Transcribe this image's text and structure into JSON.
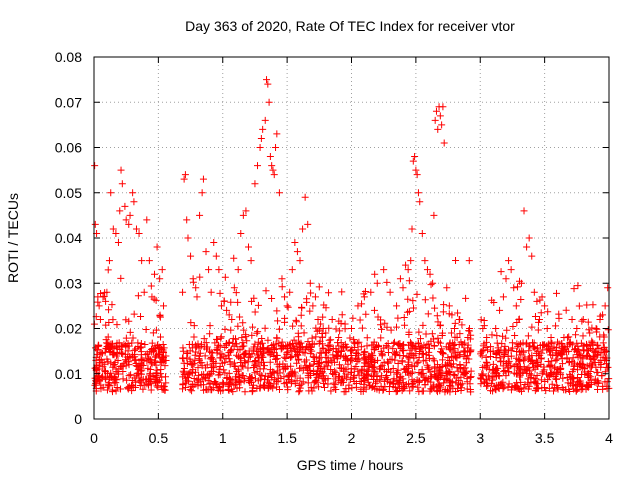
{
  "chart_data": {
    "type": "scatter",
    "title": "Day 363 of 2020, Rate Of TEC Index for receiver vtor",
    "xlabel": "GPS time / hours",
    "ylabel": "ROTI / TECUs",
    "xlim": [
      0,
      4
    ],
    "ylim": [
      0,
      0.08
    ],
    "xticks": [
      "0",
      "0.5",
      "1",
      "1.5",
      "2",
      "2.5",
      "3",
      "3.5",
      "4"
    ],
    "xtick_values": [
      0,
      0.5,
      1,
      1.5,
      2,
      2.5,
      3,
      3.5,
      4
    ],
    "yticks": [
      "0",
      "0.01",
      "0.02",
      "0.03",
      "0.04",
      "0.05",
      "0.06",
      "0.07",
      "0.08"
    ],
    "ytick_values": [
      0,
      0.01,
      0.02,
      0.03,
      0.04,
      0.05,
      0.06,
      0.07,
      0.08
    ],
    "grid": true,
    "marker": "+",
    "color": "#ff0000",
    "gaps_hours": [
      [
        0.56,
        0.68
      ],
      [
        2.93,
        3.0
      ]
    ],
    "series": [
      {
        "name": "ROTI",
        "points": [
          [
            0.005,
            0.056
          ],
          [
            0.01,
            0.043
          ],
          [
            0.02,
            0.041
          ],
          [
            0.03,
            0.027
          ],
          [
            0.04,
            0.025
          ],
          [
            0.05,
            0.022
          ],
          [
            0.07,
            0.027
          ],
          [
            0.09,
            0.026
          ],
          [
            0.1,
            0.028
          ],
          [
            0.12,
            0.035
          ],
          [
            0.13,
            0.05
          ],
          [
            0.15,
            0.042
          ],
          [
            0.17,
            0.041
          ],
          [
            0.19,
            0.039
          ],
          [
            0.2,
            0.046
          ],
          [
            0.21,
            0.055
          ],
          [
            0.22,
            0.052
          ],
          [
            0.24,
            0.047
          ],
          [
            0.25,
            0.044
          ],
          [
            0.27,
            0.043
          ],
          [
            0.28,
            0.045
          ],
          [
            0.3,
            0.05
          ],
          [
            0.31,
            0.048
          ],
          [
            0.33,
            0.042
          ],
          [
            0.35,
            0.041
          ],
          [
            0.37,
            0.035
          ],
          [
            0.39,
            0.028
          ],
          [
            0.41,
            0.044
          ],
          [
            0.43,
            0.035
          ],
          [
            0.45,
            0.027
          ],
          [
            0.47,
            0.032
          ],
          [
            0.49,
            0.038
          ],
          [
            0.51,
            0.031
          ],
          [
            0.53,
            0.033
          ],
          [
            0.54,
            0.025
          ],
          [
            0.7,
            0.053
          ],
          [
            0.71,
            0.054
          ],
          [
            0.72,
            0.044
          ],
          [
            0.73,
            0.04
          ],
          [
            0.75,
            0.036
          ],
          [
            0.77,
            0.031
          ],
          [
            0.79,
            0.029
          ],
          [
            0.8,
            0.027
          ],
          [
            0.82,
            0.045
          ],
          [
            0.84,
            0.05
          ],
          [
            0.85,
            0.053
          ],
          [
            0.87,
            0.037
          ],
          [
            0.89,
            0.033
          ],
          [
            0.91,
            0.028
          ],
          [
            0.93,
            0.039
          ],
          [
            0.95,
            0.036
          ],
          [
            0.97,
            0.033
          ],
          [
            0.99,
            0.025
          ],
          [
            1.01,
            0.026
          ],
          [
            1.03,
            0.024
          ],
          [
            1.05,
            0.023
          ],
          [
            1.07,
            0.022
          ],
          [
            1.09,
            0.029
          ],
          [
            1.12,
            0.033
          ],
          [
            1.14,
            0.041
          ],
          [
            1.16,
            0.045
          ],
          [
            1.18,
            0.046
          ],
          [
            1.2,
            0.038
          ],
          [
            1.22,
            0.035
          ],
          [
            1.25,
            0.052
          ],
          [
            1.27,
            0.056
          ],
          [
            1.29,
            0.06
          ],
          [
            1.3,
            0.062
          ],
          [
            1.31,
            0.064
          ],
          [
            1.33,
            0.066
          ],
          [
            1.34,
            0.075
          ],
          [
            1.35,
            0.074
          ],
          [
            1.36,
            0.07
          ],
          [
            1.37,
            0.058
          ],
          [
            1.38,
            0.056
          ],
          [
            1.39,
            0.055
          ],
          [
            1.4,
            0.054
          ],
          [
            1.41,
            0.06
          ],
          [
            1.42,
            0.063
          ],
          [
            1.44,
            0.05
          ],
          [
            1.46,
            0.031
          ],
          [
            1.48,
            0.027
          ],
          [
            1.5,
            0.025
          ],
          [
            1.52,
            0.028
          ],
          [
            1.54,
            0.033
          ],
          [
            1.56,
            0.039
          ],
          [
            1.58,
            0.037
          ],
          [
            1.6,
            0.035
          ],
          [
            1.62,
            0.042
          ],
          [
            1.64,
            0.049
          ],
          [
            1.66,
            0.043
          ],
          [
            1.68,
            0.03
          ],
          [
            1.7,
            0.025
          ],
          [
            1.72,
            0.027
          ],
          [
            1.74,
            0.022
          ],
          [
            1.76,
            0.021
          ],
          [
            1.78,
            0.02
          ],
          [
            1.8,
            0.019
          ],
          [
            1.85,
            0.022
          ],
          [
            1.9,
            0.018
          ],
          [
            1.95,
            0.021
          ],
          [
            2.0,
            0.02
          ],
          [
            2.05,
            0.025
          ],
          [
            2.1,
            0.027
          ],
          [
            2.15,
            0.028
          ],
          [
            2.18,
            0.032
          ],
          [
            2.2,
            0.03
          ],
          [
            2.25,
            0.033
          ],
          [
            2.3,
            0.028
          ],
          [
            2.35,
            0.025
          ],
          [
            2.38,
            0.031
          ],
          [
            2.4,
            0.029
          ],
          [
            2.42,
            0.034
          ],
          [
            2.44,
            0.033
          ],
          [
            2.46,
            0.035
          ],
          [
            2.47,
            0.042
          ],
          [
            2.48,
            0.057
          ],
          [
            2.49,
            0.058
          ],
          [
            2.5,
            0.055
          ],
          [
            2.51,
            0.054
          ],
          [
            2.52,
            0.05
          ],
          [
            2.53,
            0.048
          ],
          [
            2.55,
            0.041
          ],
          [
            2.57,
            0.035
          ],
          [
            2.59,
            0.033
          ],
          [
            2.61,
            0.032
          ],
          [
            2.63,
            0.03
          ],
          [
            2.64,
            0.045
          ],
          [
            2.65,
            0.066
          ],
          [
            2.66,
            0.068
          ],
          [
            2.67,
            0.064
          ],
          [
            2.68,
            0.069
          ],
          [
            2.69,
            0.067
          ],
          [
            2.7,
            0.065
          ],
          [
            2.71,
            0.069
          ],
          [
            2.72,
            0.061
          ],
          [
            2.74,
            0.029
          ],
          [
            2.76,
            0.025
          ],
          [
            2.78,
            0.023
          ],
          [
            2.8,
            0.02
          ],
          [
            2.82,
            0.018
          ],
          [
            2.85,
            0.017
          ],
          [
            2.88,
            0.015
          ],
          [
            2.9,
            0.014
          ],
          [
            3.02,
            0.02
          ],
          [
            3.05,
            0.018
          ],
          [
            3.08,
            0.016
          ],
          [
            3.1,
            0.015
          ],
          [
            3.12,
            0.02
          ],
          [
            3.15,
            0.024
          ],
          [
            3.18,
            0.027
          ],
          [
            3.2,
            0.031
          ],
          [
            3.22,
            0.035
          ],
          [
            3.24,
            0.033
          ],
          [
            3.26,
            0.029
          ],
          [
            3.28,
            0.025
          ],
          [
            3.3,
            0.022
          ],
          [
            3.32,
            0.03
          ],
          [
            3.34,
            0.046
          ],
          [
            3.36,
            0.038
          ],
          [
            3.38,
            0.04
          ],
          [
            3.4,
            0.036
          ],
          [
            3.42,
            0.028
          ],
          [
            3.44,
            0.026
          ],
          [
            3.46,
            0.022
          ],
          [
            3.48,
            0.027
          ],
          [
            3.5,
            0.025
          ],
          [
            3.52,
            0.02
          ],
          [
            3.55,
            0.018
          ],
          [
            3.6,
            0.017
          ],
          [
            3.65,
            0.018
          ],
          [
            3.7,
            0.017
          ],
          [
            3.75,
            0.02
          ],
          [
            3.8,
            0.022
          ],
          [
            3.85,
            0.019
          ],
          [
            3.9,
            0.02
          ],
          [
            3.93,
            0.022
          ],
          [
            3.95,
            0.023
          ],
          [
            3.97,
            0.025
          ],
          [
            3.99,
            0.029
          ]
        ]
      }
    ]
  }
}
